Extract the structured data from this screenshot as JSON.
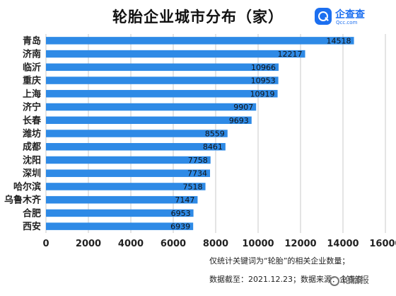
{
  "title": "轮胎企业城市分布（家）",
  "logo": {
    "name_cn": "企查查",
    "name_en": "Qcc.com"
  },
  "notes": {
    "line1": "仅统计关键词为“轮胎”的相关企业数量；",
    "line2": "数据截至：2021.12.23；数据来源：企查查"
  },
  "watermark": "轮胎报",
  "colors": {
    "bar": "#2e8ae6",
    "grid": "#c8c8c8",
    "text": "#222222"
  },
  "chart_data": {
    "type": "bar",
    "orientation": "horizontal",
    "categories": [
      "青岛",
      "济南",
      "临沂",
      "重庆",
      "上海",
      "济宁",
      "长春",
      "潍坊",
      "成都",
      "沈阳",
      "深圳",
      "哈尔滨",
      "乌鲁木齐",
      "合肥",
      "西安"
    ],
    "values": [
      14518,
      12217,
      10966,
      10953,
      10919,
      9907,
      9693,
      8559,
      8461,
      7758,
      7734,
      7518,
      7147,
      6953,
      6939
    ],
    "xticks": [
      0,
      2000,
      4000,
      6000,
      8000,
      10000,
      12000,
      14000,
      16000
    ],
    "xlim": [
      0,
      16000
    ],
    "title": "轮胎企业城市分布（家）",
    "xlabel": "",
    "ylabel": "",
    "grid": true,
    "data_labels": true
  }
}
